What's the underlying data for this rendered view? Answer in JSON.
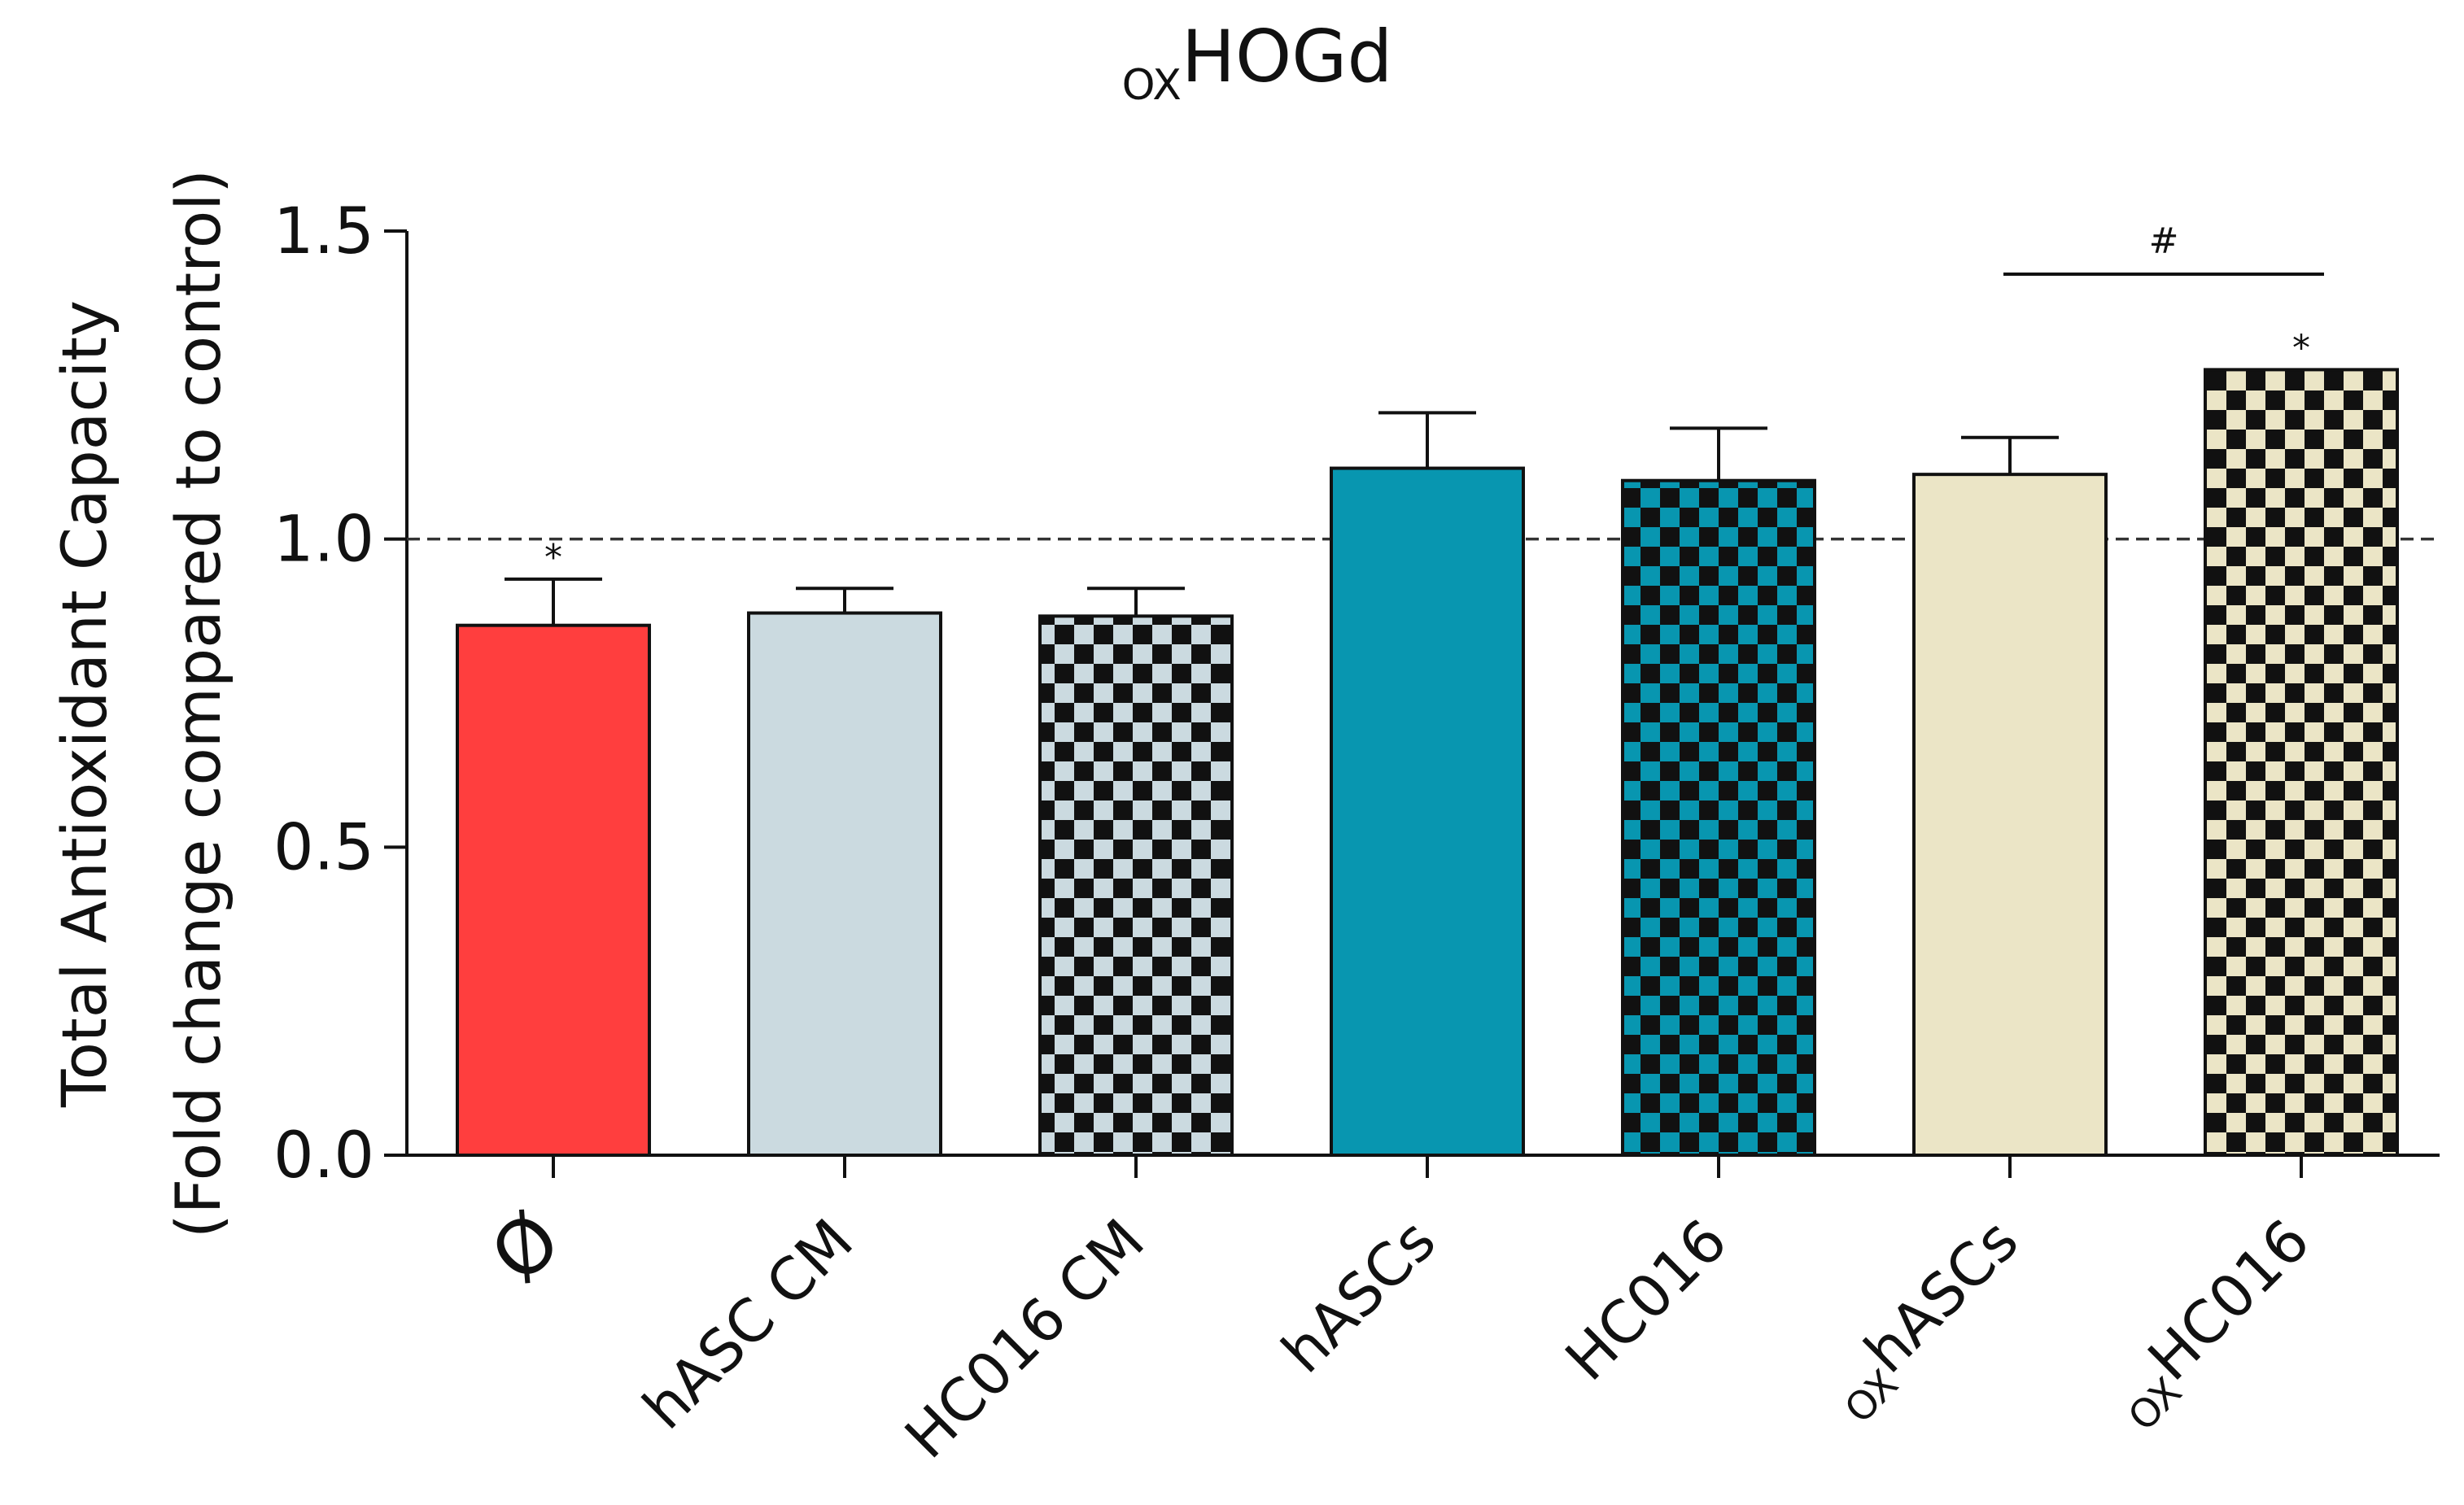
{
  "chart_data": {
    "type": "bar",
    "title": {
      "prefix": "OX",
      "main": "HOGd"
    },
    "ylabel": [
      "Total Antioxidant Capacity",
      "(Fold change compared to control)"
    ],
    "ylim": [
      0,
      1.5
    ],
    "yticks": [
      {
        "value": 0.0,
        "label": "0.0"
      },
      {
        "value": 0.5,
        "label": "0.5"
      },
      {
        "value": 1.0,
        "label": "1.0"
      },
      {
        "value": 1.5,
        "label": "1.5"
      }
    ],
    "reference_line": 1.0,
    "categories": [
      {
        "prefix": "",
        "label": "Ø"
      },
      {
        "prefix": "",
        "label": "hASC CM"
      },
      {
        "prefix": "",
        "label": "HC016 CM"
      },
      {
        "prefix": "",
        "label": "hASCs"
      },
      {
        "prefix": "",
        "label": "HC016"
      },
      {
        "prefix": "OX",
        "label": "hASCs"
      },
      {
        "prefix": "OX",
        "label": "HC016"
      }
    ],
    "values": [
      0.86,
      0.88,
      0.875,
      1.115,
      1.095,
      1.105,
      1.275
    ],
    "errors": [
      0.075,
      0.04,
      0.045,
      0.09,
      0.085,
      0.06,
      0.0
    ],
    "colors": [
      "#ff3e3e",
      "#cbdae0",
      "#cbdae0",
      "#0896b0",
      "#0896b0",
      "#ebe5c6",
      "#ebe5c6"
    ],
    "checkered": [
      false,
      false,
      true,
      false,
      true,
      false,
      true
    ],
    "annotations": [
      {
        "category": 0,
        "text": "*"
      },
      {
        "category": 6,
        "text": "*"
      }
    ],
    "bracket": {
      "from": 5,
      "to": 6,
      "value": 1.43,
      "text": "#"
    }
  }
}
